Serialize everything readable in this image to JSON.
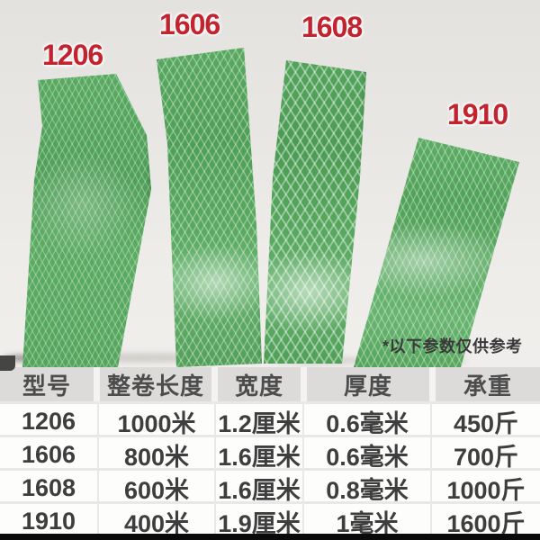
{
  "photo": {
    "labels": [
      {
        "text": "1206"
      },
      {
        "text": "1606"
      },
      {
        "text": "1608"
      },
      {
        "text": "1910"
      }
    ],
    "note": "*以下参数仅供参考"
  },
  "table": {
    "headers": [
      "型号",
      "整卷长度",
      "宽度",
      "厚度",
      "承重"
    ],
    "rows": [
      [
        "1206",
        "1000米",
        "1.2厘米",
        "0.6毫米",
        "450斤"
      ],
      [
        "1606",
        "800米",
        "1.6厘米",
        "0.6毫米",
        "700斤"
      ],
      [
        "1608",
        "600米",
        "1.6厘米",
        "0.8毫米",
        "1000斤"
      ],
      [
        "1910",
        "400米",
        "1.9厘米",
        "1毫米",
        "1600斤"
      ]
    ]
  },
  "colors": {
    "label_red": "#c2232e",
    "strap_green": "#58a75f",
    "strap_green_dark": "#3f8f4b",
    "strap_highlight": "#bce4c0",
    "table_header_bg": "#dcdbd9",
    "table_row_bg": "#fdfdfc",
    "table_text": "#3e3e3e",
    "note_text": "#3a3a3a",
    "photo_background": "#eae8e5",
    "bottom_bar": "#0a0a0a"
  }
}
